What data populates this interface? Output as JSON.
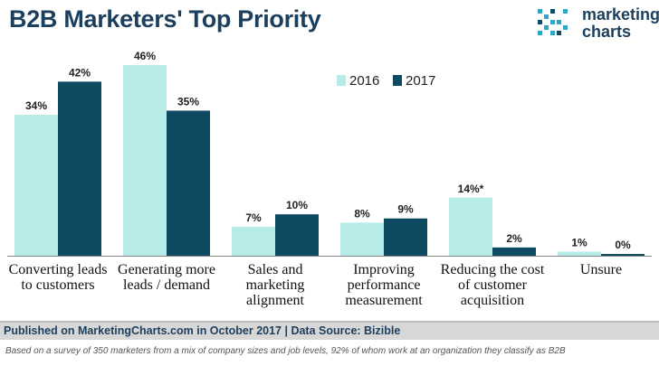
{
  "title": "B2B Marketers' Top Priority",
  "brand": {
    "line1": "marketing",
    "line2": "charts"
  },
  "footer": "Published on MarketingCharts.com in October 2017 | Data Source: Bizible",
  "note": "Based on a survey of 350 marketers from a mix of company sizes and job levels, 92% of whom work at an organization they classify as B2B",
  "colors": {
    "s2016": "#b7ebe8",
    "s2017": "#0e4a62",
    "title": "#1d3f5e"
  },
  "chart_data": {
    "type": "bar",
    "title": "B2B Marketers' Top Priority",
    "categories": [
      [
        "Converting leads",
        "to customers"
      ],
      [
        "Generating more",
        "leads / demand"
      ],
      [
        "Sales and",
        "marketing",
        "alignment"
      ],
      [
        "Improving",
        "performance",
        "measurement"
      ],
      [
        "Reducing the cost",
        "of customer",
        "acquisition"
      ],
      [
        "Unsure"
      ]
    ],
    "series": [
      {
        "name": "2016",
        "values": [
          34,
          46,
          7,
          8,
          14,
          1
        ],
        "labels": [
          "34%",
          "46%",
          "7%",
          "8%",
          "14%*",
          "1%"
        ]
      },
      {
        "name": "2017",
        "values": [
          42,
          35,
          10,
          9,
          2,
          0
        ],
        "labels": [
          "42%",
          "35%",
          "10%",
          "9%",
          "2%",
          "0%"
        ]
      }
    ],
    "ylim": [
      0,
      46
    ],
    "grid": false,
    "legend": "top-center"
  }
}
